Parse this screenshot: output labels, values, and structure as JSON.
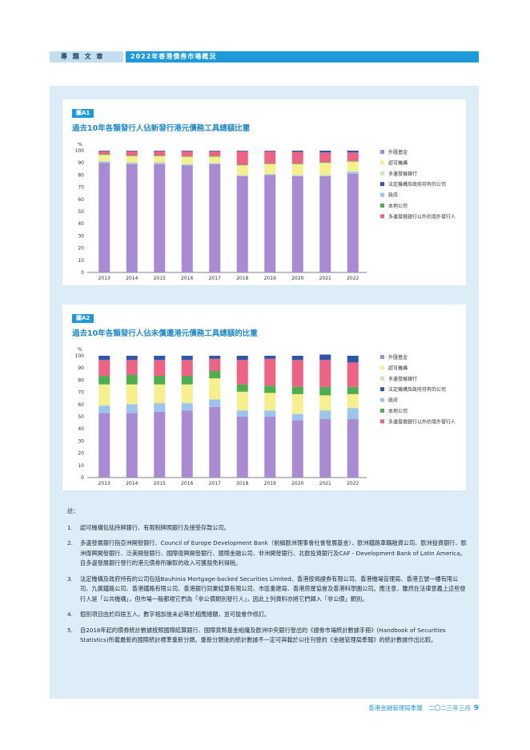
{
  "header": {
    "section": "專 題 文 章",
    "title": "2022年香港債券市場概況"
  },
  "colors": {
    "外匯基金": "#a98bd4",
    "認可機構": "#f5ef8c",
    "多邊發展銀行": "#c7e5b1",
    "法定機構及政府持有的公司": "#2f56a6",
    "政府": "#9cc4ec",
    "本地公司": "#4cae4c",
    "多邊發展銀行以外的境外發行人": "#ee6284"
  },
  "legend": [
    "外匯基金",
    "認可機構",
    "多邊發展銀行",
    "法定機構及政府持有的公司",
    "政府",
    "本地公司",
    "多邊發展銀行以外的境外發行人"
  ],
  "chart_data": [
    {
      "type": "bar",
      "tag": "圖A1",
      "title": "過去10年各類發行人佔新發行港元債務工具總額比重",
      "ylabel": "%",
      "ylim": [
        0,
        100
      ],
      "yticks": [
        0,
        10,
        20,
        30,
        40,
        50,
        60,
        70,
        80,
        90,
        100
      ],
      "categories": [
        "2013",
        "2014",
        "2015",
        "2016",
        "2017",
        "2018",
        "2019",
        "2020",
        "2021",
        "2022"
      ],
      "series": [
        {
          "name": "外匯基金",
          "values": [
            90,
            89,
            89,
            88,
            89,
            79,
            80,
            79,
            79,
            81
          ]
        },
        {
          "name": "政府",
          "values": [
            1,
            1,
            1,
            0.5,
            0.5,
            0.5,
            0.5,
            0.5,
            0.5,
            1.5
          ]
        },
        {
          "name": "多邊發展銀行",
          "values": [
            0.5,
            0.5,
            0.5,
            0.5,
            0.5,
            0.5,
            0.5,
            0.5,
            0.5,
            0.5
          ]
        },
        {
          "name": "認可機構",
          "values": [
            5,
            5,
            5,
            6,
            5,
            8,
            8,
            9,
            10,
            8
          ]
        },
        {
          "name": "本地公司",
          "values": [
            0.5,
            0.5,
            0.5,
            0.5,
            0.5,
            0.5,
            0.5,
            0.5,
            0.5,
            0.5
          ]
        },
        {
          "name": "多邊發展銀行以外的境外發行人",
          "values": [
            2.5,
            3.5,
            3.5,
            4,
            4,
            11,
            10,
            9.5,
            8,
            7
          ]
        },
        {
          "name": "法定機構及政府持有的公司",
          "values": [
            0.5,
            0.5,
            0.5,
            0.5,
            0.5,
            0.5,
            0.5,
            1,
            1.5,
            1.5
          ]
        }
      ]
    },
    {
      "type": "bar",
      "tag": "圖A2",
      "title": "過去10年各類發行人佔未償還港元債務工具總額的比重",
      "ylabel": "%",
      "ylim": [
        0,
        100
      ],
      "yticks": [
        0,
        10,
        20,
        30,
        40,
        50,
        60,
        70,
        80,
        90,
        100
      ],
      "categories": [
        "2013",
        "2014",
        "2015",
        "2016",
        "2017",
        "2018",
        "2019",
        "2020",
        "2021",
        "2022"
      ],
      "series": [
        {
          "name": "外匯基金",
          "values": [
            53,
            53,
            54,
            55,
            58,
            50,
            50,
            47,
            48,
            48
          ]
        },
        {
          "name": "政府",
          "values": [
            6,
            7,
            7,
            6,
            6,
            5,
            5,
            5,
            7,
            9
          ]
        },
        {
          "name": "多邊發展銀行",
          "values": [
            0.5,
            0.5,
            0.5,
            0.5,
            0.5,
            0.5,
            0.5,
            0.5,
            0.5,
            0.5
          ]
        },
        {
          "name": "認可機構",
          "values": [
            17,
            16,
            15,
            15,
            17,
            15,
            14,
            16,
            12,
            11
          ]
        },
        {
          "name": "本地公司",
          "values": [
            7,
            8,
            7,
            7,
            6,
            6,
            6,
            6,
            7,
            6
          ]
        },
        {
          "name": "多邊發展銀行以外的境外發行人",
          "values": [
            13,
            12,
            13,
            13,
            10,
            20,
            22,
            22,
            22,
            20
          ]
        },
        {
          "name": "法定機構及政府持有的公司",
          "values": [
            3.5,
            3.5,
            3.5,
            3.5,
            2.5,
            3.5,
            2.5,
            3.5,
            4.5,
            5.5
          ]
        }
      ]
    }
  ],
  "notes": {
    "heading": "註：",
    "items": [
      "認可機構包括持牌銀行、有限制牌照銀行及接受存款公司。",
      "多邊發展銀行指亞洲開發銀行、Council of Europe Development Bank（前稱歐洲理事會社會發展基金）、歐洲鐵路車輛融資公司、歐洲投資銀行、歐洲復興開發銀行、泛美開發銀行、國際復興開發銀行、國際金融公司、非洲開發銀行、北歐投資銀行及CAF - Development Bank of Latin America。自多邊發展銀行發行的港元債券所賺取的收入可獲豁免利得稅。",
      "法定機構及政府持有的公司包括Bauhinia Mortgage-backed Securities Limited、香港按揭證券有限公司、香港機場管理局、香港五號一樓有限公司、九廣鐵路公司、香港鐵路有限公司、香港銀行同業結算有限公司、市區重建局、香港房屋協會及香港科學園公司。應注意，雖然在法律意義上這些發行人是「公共機構」，但市場一般都視它們為「非公債類別發行人」，因此上列資料亦將它們歸入「非公債」類別。",
      "個別項目由於四捨五入，數字相加後未必等於相應總額，並可能會作修訂。",
      "自2018年起的債券統計數據按照國際結算銀行、國際貨幣基金組織及歐洲中央銀行發出的《證券市場統計數據手冊》(Handbook of Securities Statistics)所載最新的國際統計標準重新分類。重新分類後的統計數據不一定可與載於以往刊發的《金融管理局季報》的統計數據作出比較。"
    ]
  },
  "footer": {
    "publication": "香港金融管理局季報　二〇二三年三月",
    "page": "9"
  }
}
